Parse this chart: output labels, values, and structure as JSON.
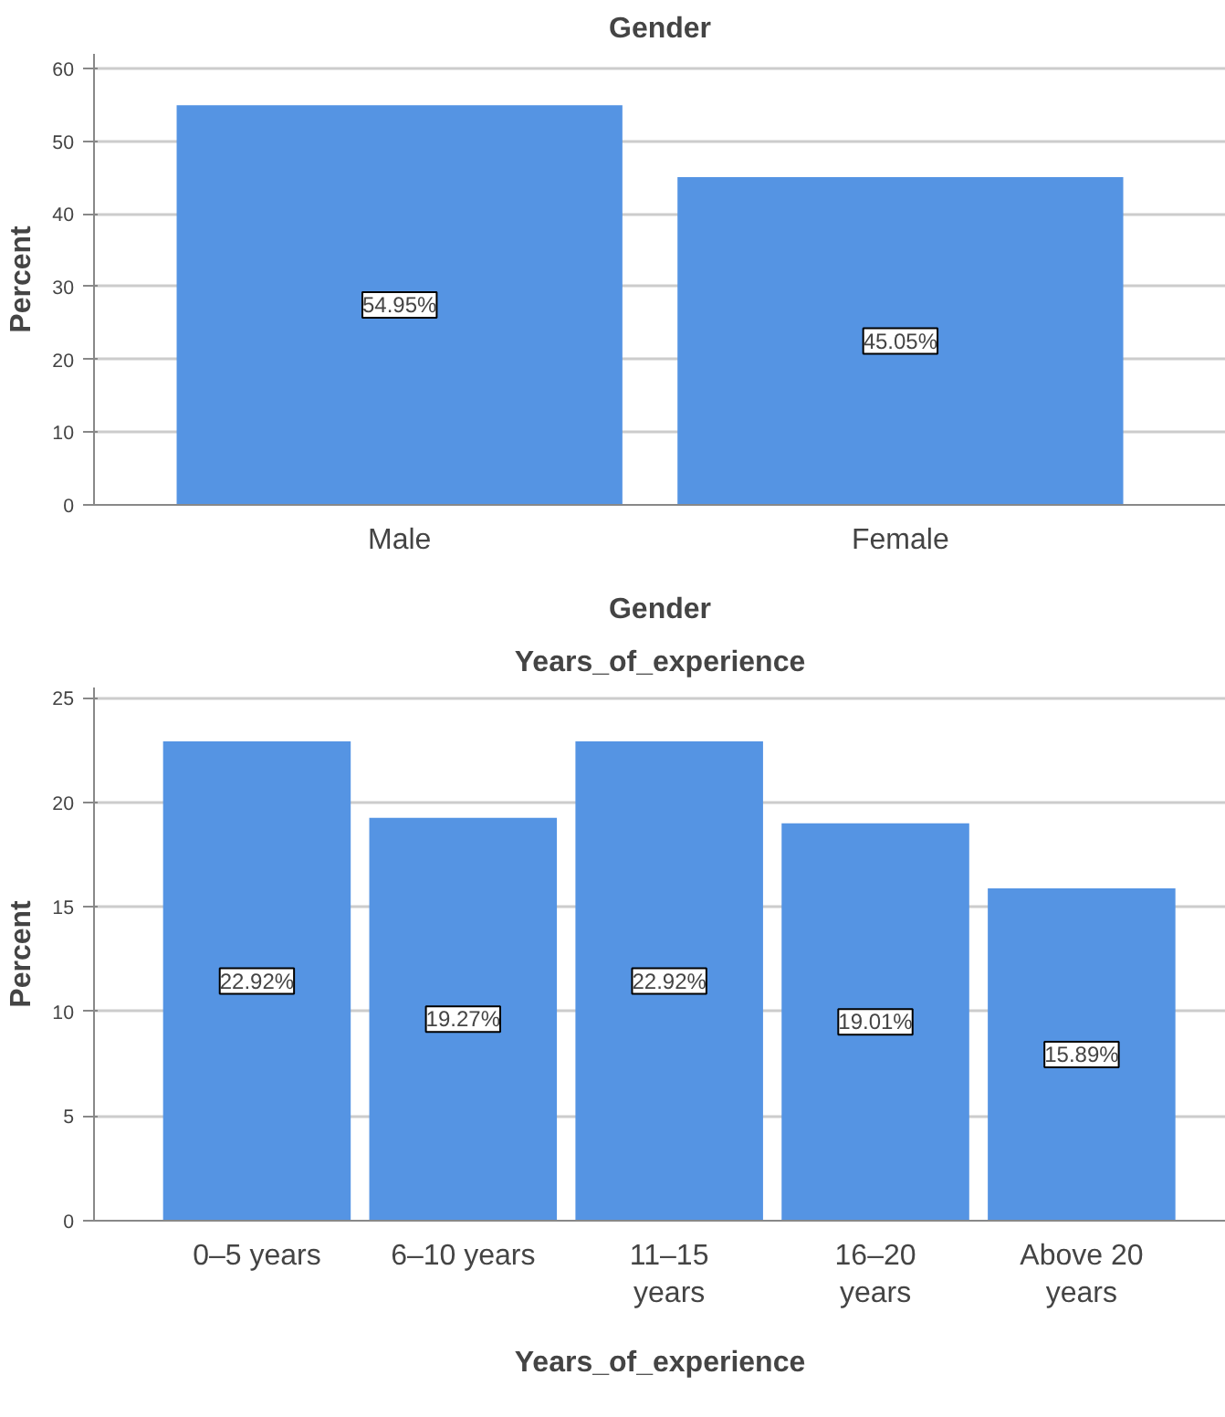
{
  "chart_data": [
    {
      "type": "bar",
      "title": "Gender",
      "xlabel": "Gender",
      "ylabel": "Percent",
      "categories": [
        "Male",
        "Female"
      ],
      "values": [
        54.95,
        45.05
      ],
      "color": "#5594e3",
      "value_labels": [
        "54.95%",
        "45.05%"
      ],
      "ylim": [
        0,
        62
      ],
      "yticks": [
        0,
        10,
        20,
        30,
        40,
        50,
        60
      ],
      "grid": "y"
    },
    {
      "type": "bar",
      "title": "Years_of_experience",
      "xlabel": "Years_of_experience",
      "ylabel": "Percent",
      "categories": [
        "0–5 years",
        "6–10 years",
        "11–15 years",
        "16–20 years",
        "Above 20 years"
      ],
      "values": [
        22.92,
        19.27,
        22.92,
        19.01,
        15.89
      ],
      "color": "#5594e3",
      "value_labels": [
        "22.92%",
        "19.27%",
        "22.92%",
        "19.01%",
        "15.89%"
      ],
      "ylim": [
        0,
        25.5
      ],
      "yticks": [
        0,
        5,
        10,
        15,
        20,
        25
      ],
      "grid": "y"
    }
  ]
}
